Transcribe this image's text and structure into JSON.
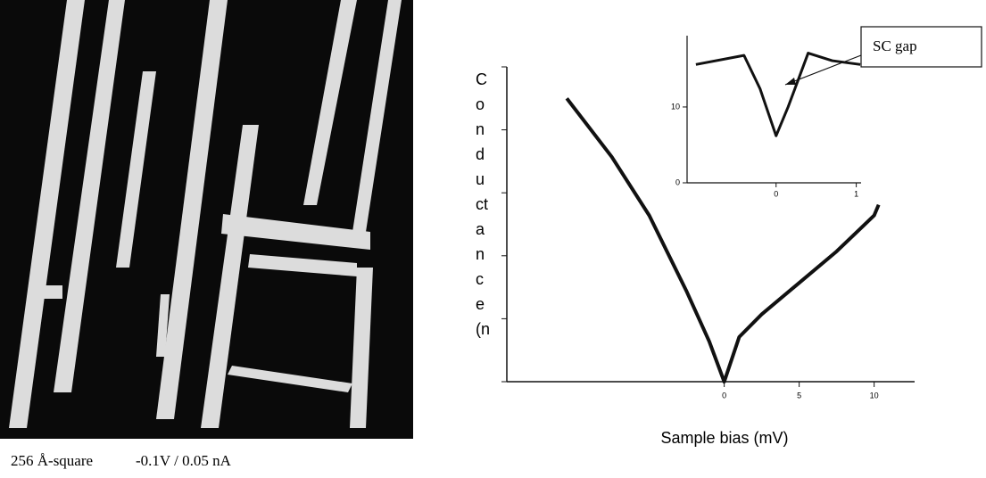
{
  "image": {
    "caption_size": "256 Å-square",
    "caption_bias": "-0.1V / 0.05 nA"
  },
  "chart_data": {
    "type": "line",
    "y_label_letters": [
      "C",
      "o",
      "n",
      "d",
      "u",
      "ct",
      "a",
      "n",
      "c",
      "e",
      "(n"
    ],
    "x_label": "Sample bias (mV)",
    "x": [
      -10.5,
      -7.5,
      -5,
      -2.5,
      -1,
      0,
      1,
      2.5,
      5,
      7.5,
      10,
      10.3
    ],
    "series": [
      {
        "color": "#111111",
        "values": [
          4.5,
          3.57,
          2.64,
          1.43,
          0.64,
          0,
          0.71,
          1.07,
          1.57,
          2.07,
          2.64,
          2.81
        ]
      }
    ],
    "xlim": [
      -14.5,
      12.7
    ],
    "ylim": [
      0,
      5
    ],
    "xticks": [
      0,
      5,
      10
    ],
    "yticks": [
      0,
      1,
      2,
      3,
      4,
      5
    ],
    "inset": {
      "type": "line",
      "annotation": "SC gap",
      "x": [
        -1.0,
        -0.4,
        -0.2,
        0,
        0.15,
        0.4,
        0.7,
        1.05
      ],
      "values": [
        15.6,
        16.8,
        12.4,
        6.2,
        10,
        17.1,
        16.1,
        15.6
      ],
      "color": "#111111",
      "xlim": [
        -1.11,
        1.06
      ],
      "ylim": [
        0,
        19.4
      ],
      "xticks": [
        0,
        1
      ],
      "yticks": [
        0,
        10
      ]
    }
  }
}
